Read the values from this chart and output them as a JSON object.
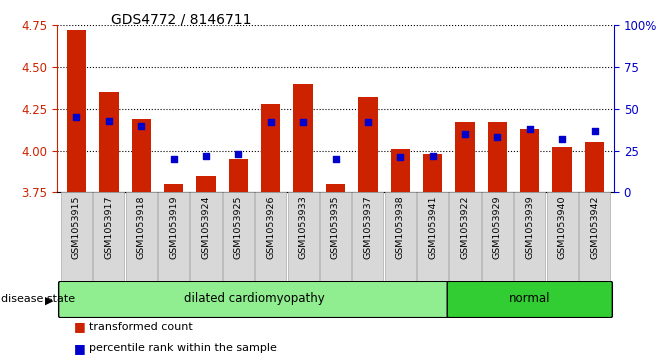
{
  "title": "GDS4772 / 8146711",
  "samples": [
    "GSM1053915",
    "GSM1053917",
    "GSM1053918",
    "GSM1053919",
    "GSM1053924",
    "GSM1053925",
    "GSM1053926",
    "GSM1053933",
    "GSM1053935",
    "GSM1053937",
    "GSM1053938",
    "GSM1053941",
    "GSM1053922",
    "GSM1053929",
    "GSM1053939",
    "GSM1053940",
    "GSM1053942"
  ],
  "bar_values": [
    4.72,
    4.35,
    4.19,
    3.8,
    3.85,
    3.95,
    4.28,
    4.4,
    3.8,
    4.32,
    4.01,
    3.98,
    4.17,
    4.17,
    4.13,
    4.02,
    4.05
  ],
  "dot_percentiles": [
    45,
    43,
    40,
    20,
    22,
    23,
    42,
    42,
    20,
    42,
    21,
    22,
    35,
    33,
    38,
    32,
    37
  ],
  "disease_groups": [
    {
      "label": "dilated cardiomyopathy",
      "start": 0,
      "end": 11,
      "color": "#90EE90"
    },
    {
      "label": "normal",
      "start": 12,
      "end": 16,
      "color": "#32CD32"
    }
  ],
  "ylim": [
    3.75,
    4.75
  ],
  "yticks": [
    3.75,
    4.0,
    4.25,
    4.5,
    4.75
  ],
  "right_yticks": [
    0,
    25,
    50,
    75,
    100
  ],
  "bar_color": "#CC2200",
  "dot_color": "#0000CC",
  "bar_bottom": 3.75,
  "background_color": "#FFFFFF",
  "left_tick_color": "#CC2200",
  "right_tick_color": "#0000CC"
}
